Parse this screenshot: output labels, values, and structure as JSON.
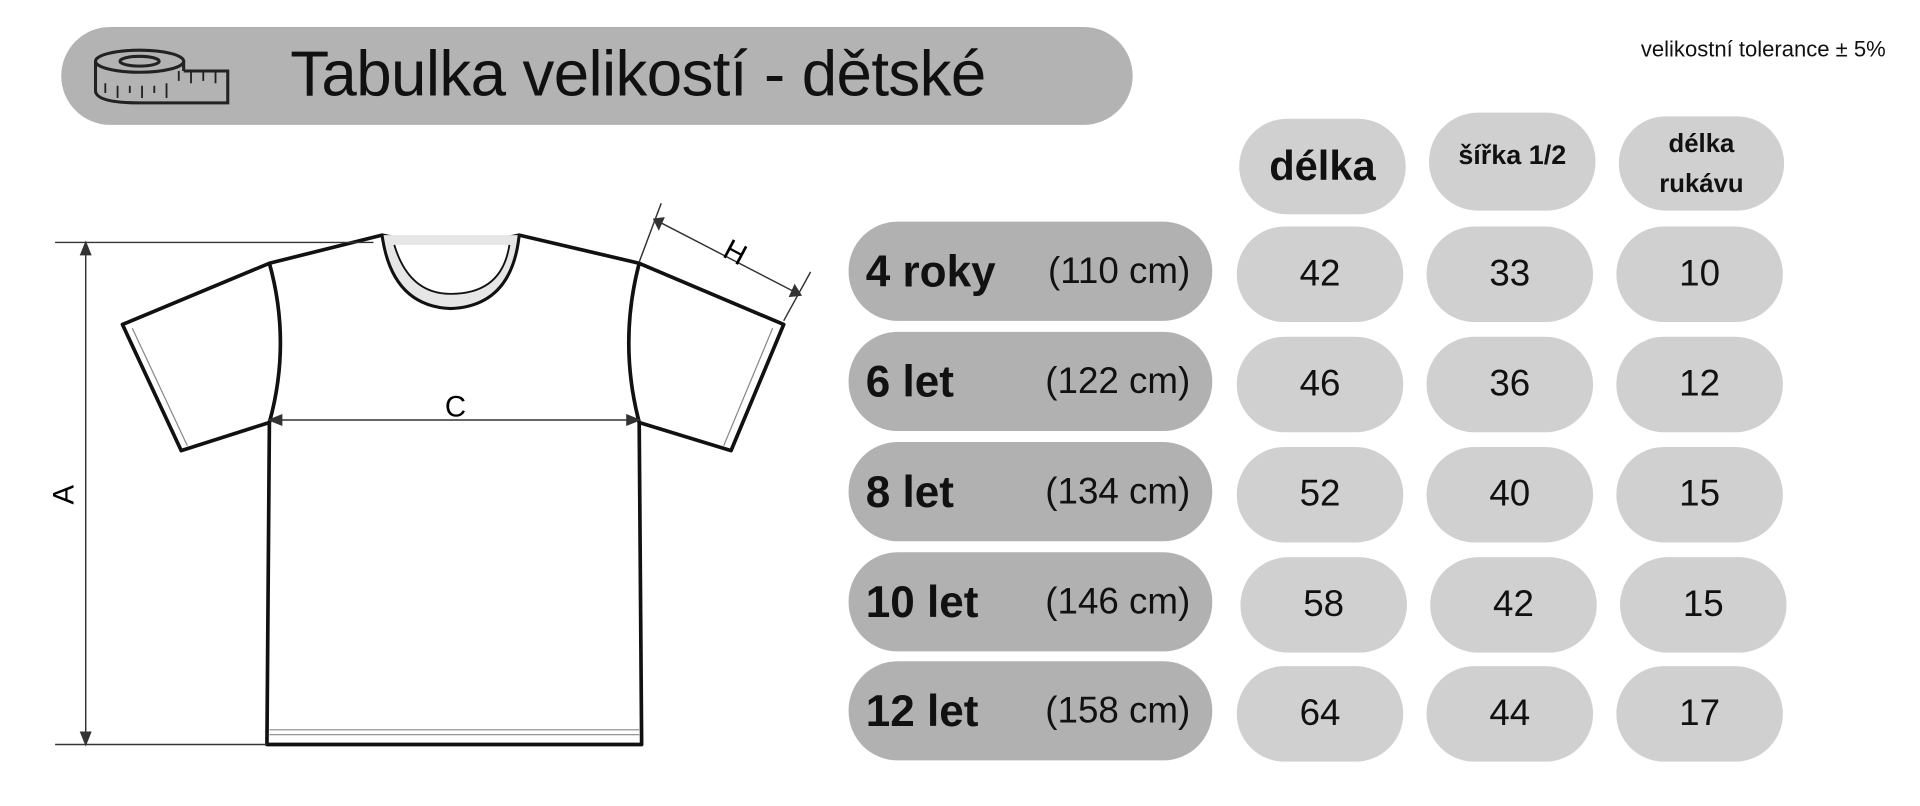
{
  "header": {
    "title": "Tabulka velikostí - dětské",
    "icon": "measuring-tape-icon",
    "tolerance": "velikostní tolerance ± 5%"
  },
  "diagram": {
    "labels": {
      "a": "A",
      "c": "C",
      "h": "H"
    }
  },
  "table": {
    "columns": [
      "délka",
      "šířka 1/2",
      "délka rukávu"
    ],
    "columns_line2": [
      "",
      "",
      "rukávu"
    ],
    "rows": [
      {
        "age": "4 roky",
        "height": "(110 cm)",
        "values": [
          "42",
          "33",
          "10"
        ]
      },
      {
        "age": "6 let",
        "height": "(122 cm)",
        "values": [
          "46",
          "36",
          "12"
        ]
      },
      {
        "age": "8 let",
        "height": "(134 cm)",
        "values": [
          "52",
          "40",
          "15"
        ]
      },
      {
        "age": "10 let",
        "height": "(146 cm)",
        "values": [
          "58",
          "42",
          "15"
        ]
      },
      {
        "age": "12 let",
        "height": "(158 cm)",
        "values": [
          "64",
          "44",
          "17"
        ]
      }
    ]
  },
  "colors": {
    "label_pill": "#b1b1b1",
    "value_pill": "#d0d0d0",
    "title_pill": "#b3b3b3"
  }
}
